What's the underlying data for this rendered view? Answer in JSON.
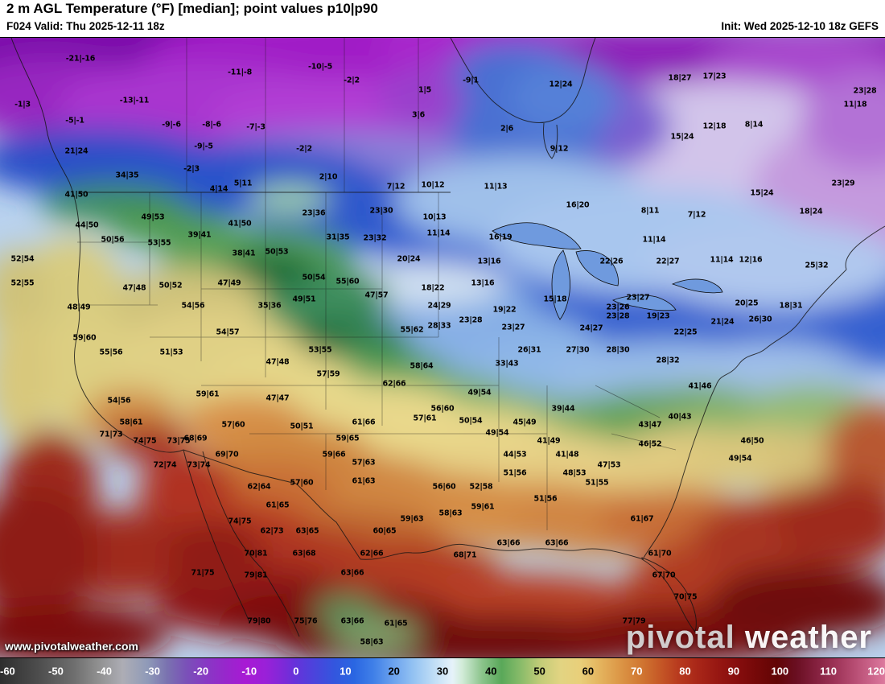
{
  "header": {
    "title": "2 m AGL Temperature (°F) [median]; point values p10|p90",
    "valid": "F024 Valid: Thu 2025-12-11 18z",
    "init": "Init: Wed 2025-12-10 18z GEFS"
  },
  "watermark": {
    "url": "www.pivotalweather.com",
    "brand_first": "pivotal",
    "brand_second": "weather"
  },
  "colorbar": {
    "min": -60,
    "max": 120,
    "ticks": [
      -60,
      -50,
      -40,
      -30,
      -20,
      -10,
      0,
      10,
      20,
      30,
      40,
      50,
      60,
      70,
      80,
      90,
      100,
      110,
      120
    ],
    "dark_label_min": 20,
    "dark_label_max": 60,
    "stops": [
      {
        "v": -60,
        "c": "#2e2e2e"
      },
      {
        "v": -52,
        "c": "#4e4e4e"
      },
      {
        "v": -45,
        "c": "#6e6e6e"
      },
      {
        "v": -40,
        "c": "#909090"
      },
      {
        "v": -35,
        "c": "#adadb5"
      },
      {
        "v": -30,
        "c": "#8f9ab8"
      },
      {
        "v": -26,
        "c": "#7a72b0"
      },
      {
        "v": -22,
        "c": "#7a50b8"
      },
      {
        "v": -18,
        "c": "#8838c4"
      },
      {
        "v": -14,
        "c": "#9826cc"
      },
      {
        "v": -10,
        "c": "#a81ad4"
      },
      {
        "v": -6,
        "c": "#9a20d8"
      },
      {
        "v": -2,
        "c": "#7a2ad8"
      },
      {
        "v": 0,
        "c": "#6632da"
      },
      {
        "v": 4,
        "c": "#4a44dc"
      },
      {
        "v": 8,
        "c": "#3356de"
      },
      {
        "v": 12,
        "c": "#2a66e2"
      },
      {
        "v": 16,
        "c": "#4080e8"
      },
      {
        "v": 20,
        "c": "#6ba2ee"
      },
      {
        "v": 24,
        "c": "#93c2f2"
      },
      {
        "v": 28,
        "c": "#bddcf6"
      },
      {
        "v": 32,
        "c": "#e6f2fa"
      },
      {
        "v": 34,
        "c": "#d2ecd8"
      },
      {
        "v": 38,
        "c": "#8cc48c"
      },
      {
        "v": 42,
        "c": "#59a859"
      },
      {
        "v": 46,
        "c": "#8abc6a"
      },
      {
        "v": 50,
        "c": "#c3cc78"
      },
      {
        "v": 54,
        "c": "#e2d482"
      },
      {
        "v": 58,
        "c": "#e9cf7a"
      },
      {
        "v": 62,
        "c": "#e4b45e"
      },
      {
        "v": 66,
        "c": "#dc9747"
      },
      {
        "v": 70,
        "c": "#d27a33"
      },
      {
        "v": 74,
        "c": "#c65a27"
      },
      {
        "v": 78,
        "c": "#b83a1e"
      },
      {
        "v": 82,
        "c": "#a82618"
      },
      {
        "v": 86,
        "c": "#971712"
      },
      {
        "v": 90,
        "c": "#860d0d"
      },
      {
        "v": 94,
        "c": "#740808"
      },
      {
        "v": 98,
        "c": "#620505"
      },
      {
        "v": 102,
        "c": "#6a0f22"
      },
      {
        "v": 106,
        "c": "#84203e"
      },
      {
        "v": 110,
        "c": "#9e3458"
      },
      {
        "v": 114,
        "c": "#b84e74"
      },
      {
        "v": 118,
        "c": "#d06a90"
      },
      {
        "v": 120,
        "c": "#dc7a9e"
      }
    ]
  },
  "points": [
    [
      100,
      73,
      "-21|-16"
    ],
    [
      298,
      90,
      "-11|-8"
    ],
    [
      398,
      83,
      "-10|-5"
    ],
    [
      437,
      100,
      "-2|2"
    ],
    [
      528,
      112,
      "1|5"
    ],
    [
      585,
      100,
      "-9|1"
    ],
    [
      697,
      105,
      "12|24"
    ],
    [
      845,
      97,
      "18|27"
    ],
    [
      888,
      95,
      "17|23"
    ],
    [
      1075,
      113,
      "23|28"
    ],
    [
      28,
      130,
      "-1|3"
    ],
    [
      167,
      125,
      "-13|-11"
    ],
    [
      93,
      150,
      "-5|-1"
    ],
    [
      213,
      155,
      "-9|-6"
    ],
    [
      263,
      155,
      "-8|-6"
    ],
    [
      318,
      158,
      "-7|-3"
    ],
    [
      520,
      143,
      "3|6"
    ],
    [
      630,
      160,
      "2|6"
    ],
    [
      1063,
      130,
      "11|18"
    ],
    [
      253,
      182,
      "-9|-5"
    ],
    [
      378,
      185,
      "-2|2"
    ],
    [
      95,
      188,
      "21|24"
    ],
    [
      695,
      185,
      "9|12"
    ],
    [
      848,
      170,
      "15|24"
    ],
    [
      888,
      157,
      "12|18"
    ],
    [
      937,
      155,
      "8|14"
    ],
    [
      158,
      218,
      "34|35"
    ],
    [
      238,
      210,
      "-2|3"
    ],
    [
      408,
      220,
      "2|10"
    ],
    [
      302,
      228,
      "5|11"
    ],
    [
      272,
      235,
      "4|14"
    ],
    [
      492,
      232,
      "7|12"
    ],
    [
      538,
      230,
      "10|12"
    ],
    [
      616,
      232,
      "11|13"
    ],
    [
      1048,
      228,
      "23|29"
    ],
    [
      947,
      240,
      "15|24"
    ],
    [
      95,
      242,
      "41|50"
    ],
    [
      718,
      255,
      "16|20"
    ],
    [
      808,
      262,
      "8|11"
    ],
    [
      866,
      267,
      "7|12"
    ],
    [
      1008,
      263,
      "18|24"
    ],
    [
      108,
      280,
      "44|50"
    ],
    [
      190,
      270,
      "49|53"
    ],
    [
      390,
      265,
      "23|36"
    ],
    [
      474,
      262,
      "23|30"
    ],
    [
      540,
      270,
      "10|13"
    ],
    [
      545,
      290,
      "11|14"
    ],
    [
      622,
      295,
      "16|19"
    ],
    [
      248,
      292,
      "39|41"
    ],
    [
      298,
      278,
      "41|50"
    ],
    [
      420,
      295,
      "31|35"
    ],
    [
      466,
      296,
      "23|32"
    ],
    [
      140,
      298,
      "50|56"
    ],
    [
      198,
      302,
      "53|55"
    ],
    [
      813,
      298,
      "11|14"
    ],
    [
      303,
      315,
      "38|41"
    ],
    [
      344,
      313,
      "50|53"
    ],
    [
      28,
      322,
      "52|54"
    ],
    [
      508,
      322,
      "20|24"
    ],
    [
      608,
      325,
      "13|16"
    ],
    [
      760,
      325,
      "22|26"
    ],
    [
      830,
      325,
      "22|27"
    ],
    [
      897,
      323,
      "11|14"
    ],
    [
      933,
      323,
      "12|16"
    ],
    [
      1015,
      330,
      "25|32"
    ],
    [
      28,
      352,
      "52|55"
    ],
    [
      167,
      358,
      "47|48"
    ],
    [
      212,
      355,
      "50|52"
    ],
    [
      285,
      352,
      "47|49"
    ],
    [
      390,
      345,
      "50|54"
    ],
    [
      432,
      350,
      "55|60"
    ],
    [
      600,
      352,
      "13|16"
    ],
    [
      538,
      358,
      "18|22"
    ],
    [
      468,
      367,
      "47|57"
    ],
    [
      690,
      372,
      "15|18"
    ],
    [
      793,
      370,
      "23|27"
    ],
    [
      928,
      377,
      "20|25"
    ],
    [
      983,
      380,
      "18|31"
    ],
    [
      98,
      382,
      "48|49"
    ],
    [
      240,
      380,
      "54|56"
    ],
    [
      335,
      380,
      "35|36"
    ],
    [
      378,
      372,
      "49|51"
    ],
    [
      546,
      380,
      "24|29"
    ],
    [
      627,
      385,
      "19|22"
    ],
    [
      768,
      382,
      "23|26"
    ],
    [
      585,
      398,
      "23|28"
    ],
    [
      638,
      407,
      "23|27"
    ],
    [
      768,
      393,
      "23|28"
    ],
    [
      818,
      393,
      "19|23"
    ],
    [
      898,
      400,
      "21|24"
    ],
    [
      945,
      397,
      "26|30"
    ],
    [
      852,
      413,
      "22|25"
    ],
    [
      546,
      405,
      "28|33"
    ],
    [
      735,
      408,
      "24|27"
    ],
    [
      105,
      420,
      "59|60"
    ],
    [
      283,
      413,
      "54|57"
    ],
    [
      213,
      438,
      "51|53"
    ],
    [
      138,
      438,
      "55|56"
    ],
    [
      398,
      435,
      "53|55"
    ],
    [
      512,
      410,
      "55|62"
    ],
    [
      658,
      435,
      "26|31"
    ],
    [
      718,
      435,
      "27|30"
    ],
    [
      768,
      435,
      "28|30"
    ],
    [
      830,
      448,
      "28|32"
    ],
    [
      345,
      450,
      "47|48"
    ],
    [
      408,
      465,
      "57|59"
    ],
    [
      524,
      455,
      "58|64"
    ],
    [
      630,
      452,
      "33|43"
    ],
    [
      870,
      480,
      "41|46"
    ],
    [
      258,
      490,
      "59|61"
    ],
    [
      490,
      477,
      "62|66"
    ],
    [
      596,
      488,
      "49|54"
    ],
    [
      700,
      508,
      "39|44"
    ],
    [
      345,
      495,
      "47|47"
    ],
    [
      148,
      498,
      "54|56"
    ],
    [
      375,
      530,
      "50|51"
    ],
    [
      290,
      528,
      "57|60"
    ],
    [
      163,
      525,
      "58|61"
    ],
    [
      452,
      525,
      "61|66"
    ],
    [
      432,
      545,
      "59|65"
    ],
    [
      415,
      565,
      "59|66"
    ],
    [
      452,
      575,
      "57|63"
    ],
    [
      528,
      520,
      "57|61"
    ],
    [
      550,
      508,
      "56|60"
    ],
    [
      585,
      523,
      "50|54"
    ],
    [
      618,
      538,
      "49|54"
    ],
    [
      652,
      525,
      "45|49"
    ],
    [
      682,
      548,
      "41|49"
    ],
    [
      705,
      565,
      "41|48"
    ],
    [
      640,
      565,
      "44|53"
    ],
    [
      808,
      528,
      "43|47"
    ],
    [
      845,
      518,
      "40|43"
    ],
    [
      808,
      552,
      "46|52"
    ],
    [
      935,
      548,
      "46|50"
    ],
    [
      920,
      570,
      "49|54"
    ],
    [
      714,
      588,
      "48|53"
    ],
    [
      757,
      578,
      "47|53"
    ],
    [
      138,
      540,
      "71|73"
    ],
    [
      180,
      548,
      "74|75"
    ],
    [
      222,
      548,
      "73|75"
    ],
    [
      243,
      545,
      "68|69"
    ],
    [
      282,
      565,
      "69|70"
    ],
    [
      205,
      578,
      "72|74"
    ],
    [
      247,
      578,
      "73|74"
    ],
    [
      322,
      605,
      "62|64"
    ],
    [
      375,
      600,
      "57|60"
    ],
    [
      452,
      598,
      "61|63"
    ],
    [
      345,
      628,
      "61|65"
    ],
    [
      552,
      605,
      "56|60"
    ],
    [
      598,
      605,
      "52|58"
    ],
    [
      640,
      588,
      "51|56"
    ],
    [
      742,
      600,
      "51|55"
    ],
    [
      600,
      630,
      "59|61"
    ],
    [
      678,
      620,
      "51|56"
    ],
    [
      798,
      645,
      "61|67"
    ],
    [
      560,
      638,
      "58|63"
    ],
    [
      512,
      645,
      "59|63"
    ],
    [
      478,
      660,
      "60|65"
    ],
    [
      382,
      660,
      "63|65"
    ],
    [
      632,
      675,
      "63|66"
    ],
    [
      692,
      675,
      "63|66"
    ],
    [
      578,
      690,
      "68|71"
    ],
    [
      820,
      688,
      "61|70"
    ],
    [
      825,
      715,
      "67|70"
    ],
    [
      852,
      742,
      "70|75"
    ],
    [
      298,
      648,
      "74|75"
    ],
    [
      338,
      660,
      "62|73"
    ],
    [
      318,
      688,
      "70|81"
    ],
    [
      378,
      688,
      "63|68"
    ],
    [
      462,
      688,
      "62|66"
    ],
    [
      252,
      712,
      "71|75"
    ],
    [
      318,
      715,
      "79|81"
    ],
    [
      438,
      712,
      "63|66"
    ],
    [
      322,
      772,
      "79|80"
    ],
    [
      380,
      772,
      "75|76"
    ],
    [
      438,
      772,
      "63|66"
    ],
    [
      492,
      775,
      "61|65"
    ],
    [
      462,
      798,
      "58|63"
    ],
    [
      788,
      772,
      "77|79"
    ]
  ]
}
